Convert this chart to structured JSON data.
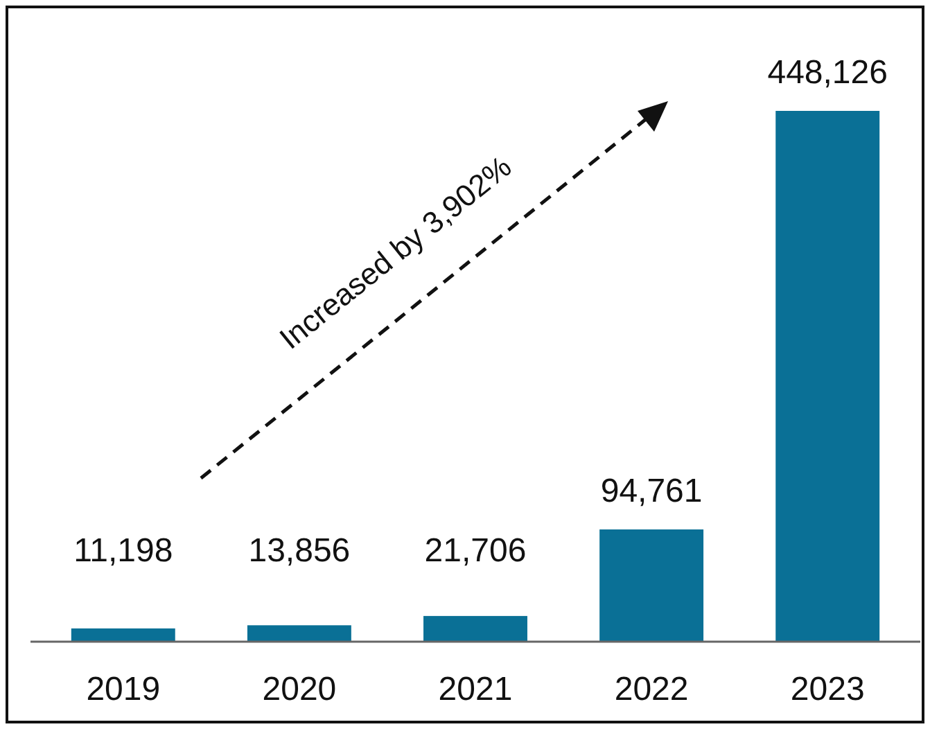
{
  "chart_data": {
    "type": "bar",
    "categories": [
      "2019",
      "2020",
      "2021",
      "2022",
      "2023"
    ],
    "values": [
      11198,
      13856,
      21706,
      94761,
      448126
    ],
    "color": "#0a7096",
    "data_labels": true,
    "value_labels": [
      "11,198",
      "13,856",
      "21,706",
      "94,761",
      "448,126"
    ],
    "annotations": [
      "Increased by 3,902%"
    ]
  }
}
